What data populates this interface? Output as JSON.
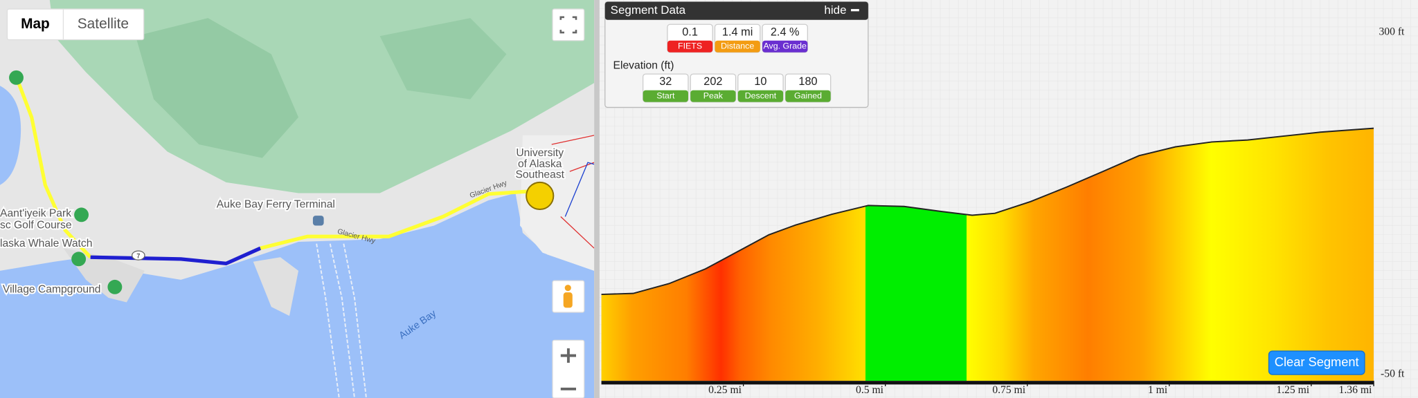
{
  "map": {
    "tabs": [
      "Map",
      "Satellite"
    ],
    "labels": {
      "university": [
        "University",
        "of Alaska",
        "Southeast"
      ],
      "ferry": "Auke Bay Ferry Terminal",
      "park": "Aant'iyeik Park",
      "golf": "sc Golf Course",
      "whale": "laska Whale Watch",
      "campground": "Village Campground",
      "bay": "Auke Bay",
      "road_1": "Glacier Hwy",
      "road_2": "Glacier Hwy",
      "shield": "7"
    }
  },
  "segment_panel": {
    "title": "Segment Data",
    "hide": "hide",
    "stats": [
      {
        "value": "0.1",
        "label": "FIETS"
      },
      {
        "value": "1.4 mi",
        "label": "Distance"
      },
      {
        "value": "2.4 %",
        "label": "Avg. Grade"
      }
    ],
    "elevation_title": "Elevation (ft)",
    "elevation": [
      {
        "value": "32",
        "label": "Start"
      },
      {
        "value": "202",
        "label": "Peak"
      },
      {
        "value": "10",
        "label": "Descent"
      },
      {
        "value": "180",
        "label": "Gained"
      }
    ]
  },
  "clear_button": "Clear Segment",
  "chart_data": {
    "type": "area",
    "x": [
      0,
      0.056,
      0.119,
      0.183,
      0.247,
      0.295,
      0.342,
      0.406,
      0.47,
      0.533,
      0.597,
      0.653,
      0.693,
      0.756,
      0.82,
      0.884,
      0.947,
      1.011,
      1.075,
      1.138,
      1.202,
      1.266,
      1.36
    ],
    "values": [
      32,
      33,
      43,
      58,
      78,
      93,
      103,
      114,
      123,
      122,
      117,
      113,
      115,
      127,
      142,
      158,
      174,
      183,
      188,
      190,
      194,
      198,
      202
    ],
    "xlim": [
      0,
      1.36
    ],
    "ylim": [
      -50,
      300
    ],
    "xticks": [
      {
        "value": 0.25,
        "label": "0.25 mi"
      },
      {
        "value": 0.5,
        "label": "0.5 mi"
      },
      {
        "value": 0.75,
        "label": "0.75 mi"
      },
      {
        "value": 1,
        "label": "1 mi"
      },
      {
        "value": 1.25,
        "label": "1.25 mi"
      },
      {
        "value": 1.36,
        "label": "1.36 mi"
      }
    ],
    "yticks": [
      {
        "value": 300,
        "label": "300 ft"
      },
      {
        "value": -50,
        "label": "-50 ft"
      }
    ],
    "line_color": "#222222"
  }
}
